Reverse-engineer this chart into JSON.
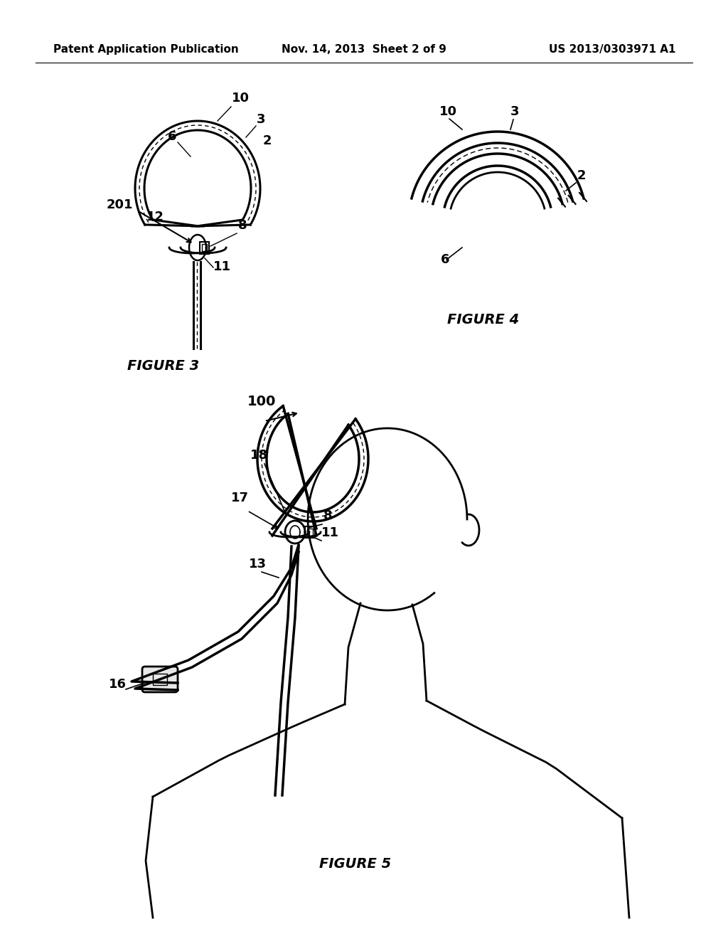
{
  "background_color": "#ffffff",
  "header_left": "Patent Application Publication",
  "header_center": "Nov. 14, 2013  Sheet 2 of 9",
  "header_right": "US 2013/0303971 A1",
  "header_fontsize": 11,
  "fig3_caption": "FIGURE 3",
  "fig4_caption": "FIGURE 4",
  "fig5_caption": "FIGURE 5"
}
